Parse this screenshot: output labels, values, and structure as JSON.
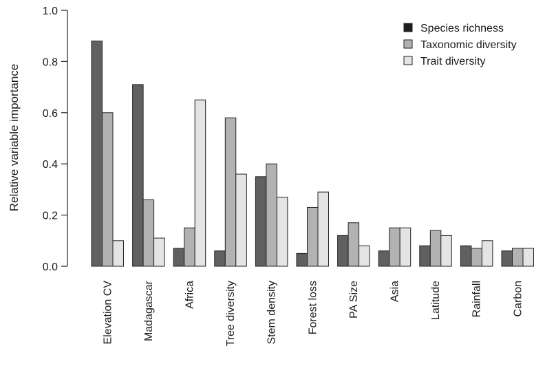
{
  "chart_data": {
    "type": "bar",
    "title": "",
    "xlabel": "",
    "ylabel": "Relative variable importance",
    "ylim": [
      0,
      1.0
    ],
    "yticks": [
      "0.0",
      "0.2",
      "0.4",
      "0.6",
      "0.8",
      "1.0"
    ],
    "grid": false,
    "legend_position": "top-right",
    "categories": [
      "Elevation CV",
      "Madagascar",
      "Africa",
      "Tree diversity",
      "Stem density",
      "Forest loss",
      "PA Size",
      "Asia",
      "Latitude",
      "Rainfall",
      "Carbon"
    ],
    "series": [
      {
        "name": "Species richness",
        "color": "#606060",
        "legend_color": "#1e1e1e",
        "values": [
          0.88,
          0.71,
          0.07,
          0.06,
          0.35,
          0.05,
          0.12,
          0.06,
          0.08,
          0.08,
          0.06
        ]
      },
      {
        "name": "Taxonomic diversity",
        "color": "#b2b2b2",
        "legend_color": "#b2b2b2",
        "values": [
          0.6,
          0.26,
          0.15,
          0.58,
          0.4,
          0.23,
          0.17,
          0.15,
          0.14,
          0.07,
          0.07
        ]
      },
      {
        "name": "Trait diversity",
        "color": "#e4e4e4",
        "legend_color": "#e4e4e4",
        "values": [
          0.1,
          0.11,
          0.65,
          0.36,
          0.27,
          0.29,
          0.08,
          0.15,
          0.12,
          0.1,
          0.07
        ]
      }
    ]
  }
}
